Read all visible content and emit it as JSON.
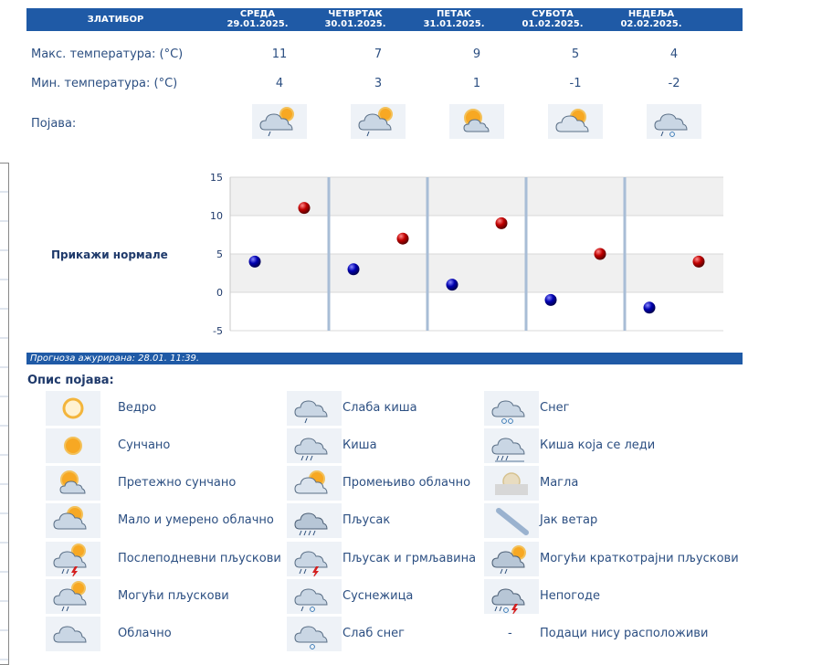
{
  "location": "ЗЛАТИБОР",
  "days": [
    {
      "name": "СРЕДА",
      "date": "29.01.2025.",
      "max": "11",
      "min": "4",
      "icon": "partly-cloudy-light-rain-icon"
    },
    {
      "name": "ЧЕТВРТАК",
      "date": "30.01.2025.",
      "max": "7",
      "min": "3",
      "icon": "partly-cloudy-light-rain-icon"
    },
    {
      "name": "ПЕТАК",
      "date": "31.01.2025.",
      "max": "9",
      "min": "1",
      "icon": "mostly-sunny-icon"
    },
    {
      "name": "СУБОТА",
      "date": "01.02.2025.",
      "max": "5",
      "min": "-1",
      "icon": "variable-cloudy-icon"
    },
    {
      "name": "НЕДЕЉА",
      "date": "02.02.2025.",
      "max": "4",
      "min": "-2",
      "icon": "sleet-icon"
    }
  ],
  "labels": {
    "max": "Макс. температура: (°C)",
    "min": "Мин. температура: (°C)",
    "phenomena": "Појава:",
    "show_normals": "Прикажи нормале",
    "updated": "Прогноза ажурирана:  28.01. 11:39.",
    "description": "Опис појава:"
  },
  "colors": {
    "header": "#1f5aa6",
    "max_point": "#c00000",
    "min_point": "#0000b0",
    "band": "#f0f0f0",
    "separator": "#a8bdd6"
  },
  "chart_data": {
    "type": "scatter",
    "categories": [
      "29.01.2025.",
      "30.01.2025.",
      "31.01.2025.",
      "01.02.2025.",
      "02.02.2025."
    ],
    "series": [
      {
        "values": [
          11,
          7,
          9,
          5,
          4
        ]
      },
      {
        "values": [
          4,
          3,
          1,
          -1,
          -2
        ]
      }
    ],
    "ylim": [
      -5,
      15
    ],
    "yticks": [
      "15",
      "10",
      "5",
      "0",
      "-5"
    ],
    "grid": true
  },
  "legend": [
    {
      "icon": "clear-icon",
      "label": "Ведро"
    },
    {
      "icon": "sunny-icon",
      "label": "Сунчано"
    },
    {
      "icon": "mostly-sunny-icon",
      "label": "Претежно сунчано"
    },
    {
      "icon": "partly-cloudy-icon",
      "label": "Мало и умерено облачно"
    },
    {
      "icon": "afternoon-showers-icon",
      "label": "Послеподневни пљускови"
    },
    {
      "icon": "possible-showers-icon",
      "label": "Могући пљускови"
    },
    {
      "icon": "cloudy-icon",
      "label": "Облачно"
    },
    {
      "icon": "light-rain-icon",
      "label": "Слаба киша"
    },
    {
      "icon": "rain-icon",
      "label": "Киша"
    },
    {
      "icon": "variable-cloudy-icon",
      "label": "Промењиво облачно"
    },
    {
      "icon": "shower-icon",
      "label": "Пљусак"
    },
    {
      "icon": "thunderstorm-icon",
      "label": "Пљусак и грмљавина"
    },
    {
      "icon": "sleet-icon",
      "label": "Суснежица"
    },
    {
      "icon": "light-snow-icon",
      "label": "Слаб снег"
    },
    {
      "icon": "snow-icon",
      "label": "Снег"
    },
    {
      "icon": "freezing-rain-icon",
      "label": "Киша која се леди"
    },
    {
      "icon": "fog-icon",
      "label": "Магла"
    },
    {
      "icon": "strong-wind-icon",
      "label": "Јак ветар"
    },
    {
      "icon": "brief-showers-icon",
      "label": "Могући краткотрајни пљускови"
    },
    {
      "icon": "storm-icon",
      "label": "Непогоде"
    },
    {
      "icon": "dash",
      "label": "Подаци нису расположиви",
      "dash": "-"
    }
  ]
}
